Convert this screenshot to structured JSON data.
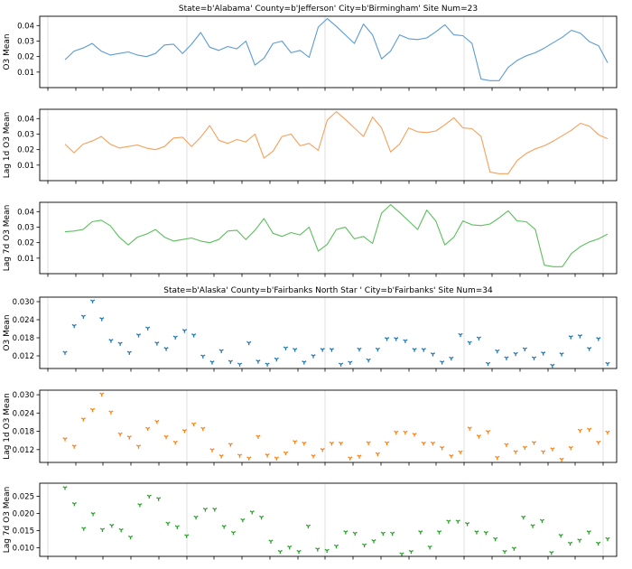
{
  "colors": {
    "series1": "#5b9bd5",
    "series2": "#f5a05a",
    "series3": "#5cbf5c",
    "marker1": "#1f77b4",
    "marker2": "#ff7f0e",
    "marker3": "#2ca02c",
    "grid": "#d8d8d8",
    "frame": "#000000"
  },
  "chart_data": [
    {
      "type": "line",
      "title": "State=b'Alabama' County=b'Jefferson' City=b'Birmingham' Site Num=23",
      "ylabel": "O3 Mean",
      "yticks": [
        "0.01",
        "0.02",
        "0.03",
        "0.04"
      ],
      "ylim": [
        0.0,
        0.046
      ],
      "grid": "vertical",
      "series": [
        {
          "values": [
            0.018,
            0.0235,
            0.0255,
            0.0285,
            0.0235,
            0.021,
            0.022,
            0.023,
            0.021,
            0.02,
            0.022,
            0.0275,
            0.028,
            0.022,
            0.028,
            0.0355,
            0.026,
            0.024,
            0.0265,
            0.025,
            0.03,
            0.0145,
            0.019,
            0.0285,
            0.03,
            0.0225,
            0.024,
            0.0195,
            0.039,
            0.0445,
            0.0395,
            0.034,
            0.0285,
            0.041,
            0.034,
            0.0185,
            0.0235,
            0.034,
            0.0315,
            0.031,
            0.032,
            0.036,
            0.0405,
            0.034,
            0.0335,
            0.0285,
            0.0055,
            0.0045,
            0.0045,
            0.013,
            0.0175,
            0.0205,
            0.0225,
            0.0255,
            0.029,
            0.0325,
            0.037,
            0.035,
            0.0295,
            0.027,
            0.016
          ]
        }
      ]
    },
    {
      "type": "line",
      "ylabel": "Lag 1d O3 Mean",
      "yticks": [
        "0.01",
        "0.02",
        "0.03",
        "0.04"
      ],
      "ylim": [
        0.0,
        0.046
      ],
      "grid": "vertical",
      "series": [
        {
          "values": [
            0.0235,
            0.018,
            0.0235,
            0.0255,
            0.0285,
            0.0235,
            0.021,
            0.022,
            0.023,
            0.021,
            0.02,
            0.022,
            0.0275,
            0.028,
            0.022,
            0.028,
            0.0355,
            0.026,
            0.024,
            0.0265,
            0.025,
            0.03,
            0.0145,
            0.019,
            0.0285,
            0.03,
            0.0225,
            0.024,
            0.0195,
            0.039,
            0.0445,
            0.0395,
            0.034,
            0.0285,
            0.041,
            0.034,
            0.0185,
            0.0235,
            0.034,
            0.0315,
            0.031,
            0.032,
            0.036,
            0.0405,
            0.034,
            0.0335,
            0.0285,
            0.0055,
            0.0045,
            0.0045,
            0.013,
            0.0175,
            0.0205,
            0.0225,
            0.0255,
            0.029,
            0.0325,
            0.037,
            0.035,
            0.0295,
            0.027
          ]
        }
      ]
    },
    {
      "type": "line",
      "ylabel": "Lag 7d O3 Mean",
      "yticks": [
        "0.01",
        "0.02",
        "0.03",
        "0.04"
      ],
      "ylim": [
        0.0,
        0.046
      ],
      "grid": "vertical",
      "series": [
        {
          "values": [
            0.027,
            0.0275,
            0.0285,
            0.0335,
            0.0345,
            0.031,
            0.0235,
            0.0185,
            0.0235,
            0.0255,
            0.0285,
            0.0235,
            0.021,
            0.022,
            0.023,
            0.021,
            0.02,
            0.022,
            0.0275,
            0.028,
            0.022,
            0.028,
            0.0355,
            0.026,
            0.024,
            0.0265,
            0.025,
            0.03,
            0.0145,
            0.019,
            0.0285,
            0.03,
            0.0225,
            0.024,
            0.0195,
            0.039,
            0.0445,
            0.0395,
            0.034,
            0.0285,
            0.041,
            0.034,
            0.0185,
            0.0235,
            0.034,
            0.0315,
            0.031,
            0.032,
            0.036,
            0.0405,
            0.034,
            0.0335,
            0.0285,
            0.0055,
            0.0045,
            0.0045,
            0.013,
            0.0175,
            0.0205,
            0.0225,
            0.0255
          ]
        }
      ]
    },
    {
      "type": "scatter",
      "title": "State=b'Alaska' County=b'Fairbanks North Star ' City=b'Fairbanks' Site Num=34",
      "ylabel": "O3 Mean",
      "yticks": [
        "0.012",
        "0.018",
        "0.024",
        "0.030"
      ],
      "ylim": [
        0.0078,
        0.0315
      ],
      "grid": "vertical",
      "marker": "tri_down",
      "series": [
        {
          "values": [
            0.0131,
            0.022,
            0.0251,
            0.0302,
            0.0243,
            0.0171,
            0.0161,
            0.0131,
            0.0189,
            0.0212,
            0.0162,
            0.0144,
            0.0182,
            0.0204,
            0.0189,
            0.0119,
            0.0099,
            0.0137,
            0.0101,
            0.0092,
            0.0163,
            0.0102,
            0.0092,
            0.0109,
            0.0146,
            0.0141,
            0.0099,
            0.012,
            0.0141,
            0.0141,
            0.0092,
            0.0098,
            0.0142,
            0.0106,
            0.0142,
            0.0177,
            0.0177,
            0.017,
            0.0141,
            0.0141,
            0.0126,
            0.0099,
            0.0112,
            0.019,
            0.0164,
            0.0179,
            0.0094,
            0.0136,
            0.0113,
            0.0127,
            0.0143,
            0.0113,
            0.0129,
            0.0088,
            0.0126,
            0.0183,
            0.0186,
            0.0144,
            0.0177,
            0.0094
          ]
        }
      ]
    },
    {
      "type": "scatter",
      "ylabel": "Lag 1d O3 Mean",
      "yticks": [
        "0.012",
        "0.018",
        "0.024",
        "0.030"
      ],
      "ylim": [
        0.0078,
        0.0315
      ],
      "grid": "vertical",
      "marker": "tri_down",
      "series": [
        {
          "values": [
            0.0155,
            0.0131,
            0.022,
            0.0251,
            0.0302,
            0.0243,
            0.0171,
            0.0161,
            0.0131,
            0.0189,
            0.0212,
            0.0162,
            0.0144,
            0.0182,
            0.0204,
            0.0189,
            0.0119,
            0.0099,
            0.0137,
            0.0101,
            0.0092,
            0.0163,
            0.0102,
            0.0092,
            0.0109,
            0.0146,
            0.0141,
            0.0099,
            0.012,
            0.0141,
            0.0141,
            0.0092,
            0.0098,
            0.0142,
            0.0106,
            0.0142,
            0.0177,
            0.0177,
            0.017,
            0.0141,
            0.0141,
            0.0126,
            0.0099,
            0.0112,
            0.019,
            0.0164,
            0.0179,
            0.0094,
            0.0136,
            0.0113,
            0.0127,
            0.0143,
            0.0113,
            0.0122,
            0.0088,
            0.0126,
            0.0183,
            0.0186,
            0.0144,
            0.0177
          ]
        }
      ]
    },
    {
      "type": "scatter",
      "ylabel": "Lag 7d O3 Mean",
      "yticks": [
        "0.010",
        "0.015",
        "0.020",
        "0.025"
      ],
      "ylim": [
        0.0075,
        0.0288
      ],
      "grid": "vertical",
      "marker": "tri_down",
      "series": [
        {
          "values": [
            0.0275,
            0.0228,
            0.0156,
            0.0199,
            0.0153,
            0.0165,
            0.0152,
            0.0131,
            0.0225,
            0.025,
            0.0243,
            0.0171,
            0.0161,
            0.0135,
            0.0189,
            0.0212,
            0.0212,
            0.0162,
            0.0144,
            0.0181,
            0.0204,
            0.0189,
            0.0119,
            0.0089,
            0.0102,
            0.0089,
            0.0163,
            0.0096,
            0.0092,
            0.0105,
            0.0146,
            0.0142,
            0.0108,
            0.012,
            0.0142,
            0.0142,
            0.0082,
            0.0089,
            0.0146,
            0.0102,
            0.0146,
            0.0177,
            0.0177,
            0.017,
            0.0146,
            0.0144,
            0.0126,
            0.0089,
            0.0098,
            0.0189,
            0.0164,
            0.0179,
            0.0086,
            0.0136,
            0.0113,
            0.0122,
            0.0146,
            0.0113,
            0.0126
          ]
        }
      ]
    }
  ]
}
